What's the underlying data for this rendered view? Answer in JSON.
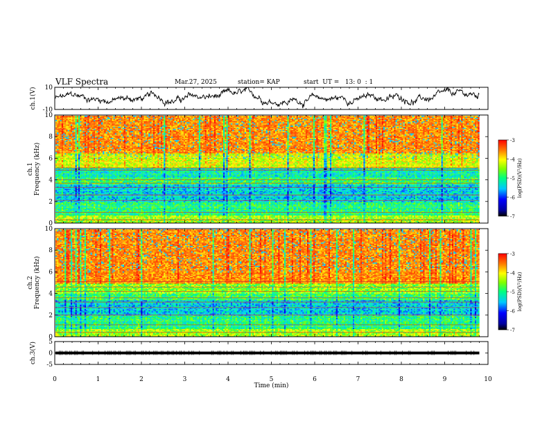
{
  "header": {
    "title": "VLF Spectra",
    "date": "Mar.27, 2025",
    "station": "station= KAP",
    "start": "start  UT =   13: 0  : 1"
  },
  "chart_data": [
    {
      "type": "line",
      "panel": "ch1-waveform",
      "ylabel": "ch.1(V)",
      "ylim": [
        -10,
        10
      ],
      "yticks": [
        "10",
        "-10"
      ],
      "xlim": [
        0,
        10
      ],
      "series_color": "#000000",
      "amplitude_range": [
        -9,
        9
      ],
      "x_end": 9.8
    },
    {
      "type": "heatmap",
      "panel": "ch1-spectrogram",
      "ylabel": "ch.1\nFrequency (kHz)",
      "ylabel_line1": "ch.1",
      "ylabel_line2": "Frequency (kHz)",
      "ylim": [
        0,
        10
      ],
      "yticks": [
        "0",
        "2",
        "4",
        "6",
        "8",
        "10"
      ],
      "xlim": [
        0,
        10
      ],
      "x_end": 9.8,
      "bands": [
        {
          "from": 0,
          "to": 0.8,
          "level": -4.6
        },
        {
          "from": 0.8,
          "to": 2.0,
          "level": -5.1
        },
        {
          "from": 2.0,
          "to": 3.6,
          "level": -5.5
        },
        {
          "from": 3.6,
          "to": 4.2,
          "level": -5.0
        },
        {
          "from": 4.2,
          "to": 5.2,
          "level": -5.3
        },
        {
          "from": 5.2,
          "to": 6.5,
          "level": -4.4
        },
        {
          "from": 6.5,
          "to": 10,
          "level": -3.8
        }
      ],
      "lines_khz": [
        0.3,
        1.0,
        2.1,
        2.6,
        3.3,
        3.7,
        4.0,
        4.9,
        5.1
      ],
      "colorbar": {
        "label": "log(PSD)(V²/Hz)",
        "min": -7,
        "max": -3,
        "ticks": [
          "-3",
          "-4",
          "-5",
          "-6",
          "-7"
        ]
      }
    },
    {
      "type": "heatmap",
      "panel": "ch2-spectrogram",
      "ylabel": "ch.2\nFrequency (kHz)",
      "ylabel_line1": "ch.2",
      "ylabel_line2": "Frequency (kHz)",
      "ylim": [
        0,
        10
      ],
      "yticks": [
        "0",
        "2",
        "4",
        "6",
        "8",
        "10"
      ],
      "xlim": [
        0,
        10
      ],
      "x_end": 9.8,
      "bands": [
        {
          "from": 0,
          "to": 0.8,
          "level": -4.6
        },
        {
          "from": 0.8,
          "to": 2.0,
          "level": -5.1
        },
        {
          "from": 2.0,
          "to": 3.4,
          "level": -5.5
        },
        {
          "from": 3.4,
          "to": 4.0,
          "level": -5.0
        },
        {
          "from": 4.0,
          "to": 5.0,
          "level": -4.7
        },
        {
          "from": 5.0,
          "to": 10,
          "level": -3.8
        }
      ],
      "lines_khz": [
        0.4,
        1.1,
        2.0,
        2.7,
        3.2,
        3.6,
        4.2,
        4.6,
        5.1
      ],
      "colorbar": {
        "label": "log(PSD)(V²/Hz)",
        "min": -7,
        "max": -3,
        "ticks": [
          "-3",
          "-4",
          "-5",
          "-6",
          "-7"
        ]
      }
    },
    {
      "type": "line",
      "panel": "ch3-waveform",
      "ylabel": "ch.3(V)",
      "ylim": [
        -5,
        5
      ],
      "yticks": [
        "5",
        "0",
        "-5"
      ],
      "xlim": [
        0,
        10
      ],
      "xlabel": "Time (min)",
      "xticks": [
        "0",
        "1",
        "2",
        "3",
        "4",
        "5",
        "6",
        "7",
        "8",
        "9",
        "10"
      ],
      "series_color": "#000000",
      "signal_level": 0,
      "signal_amplitude": 0.6,
      "x_end": 9.8
    }
  ]
}
